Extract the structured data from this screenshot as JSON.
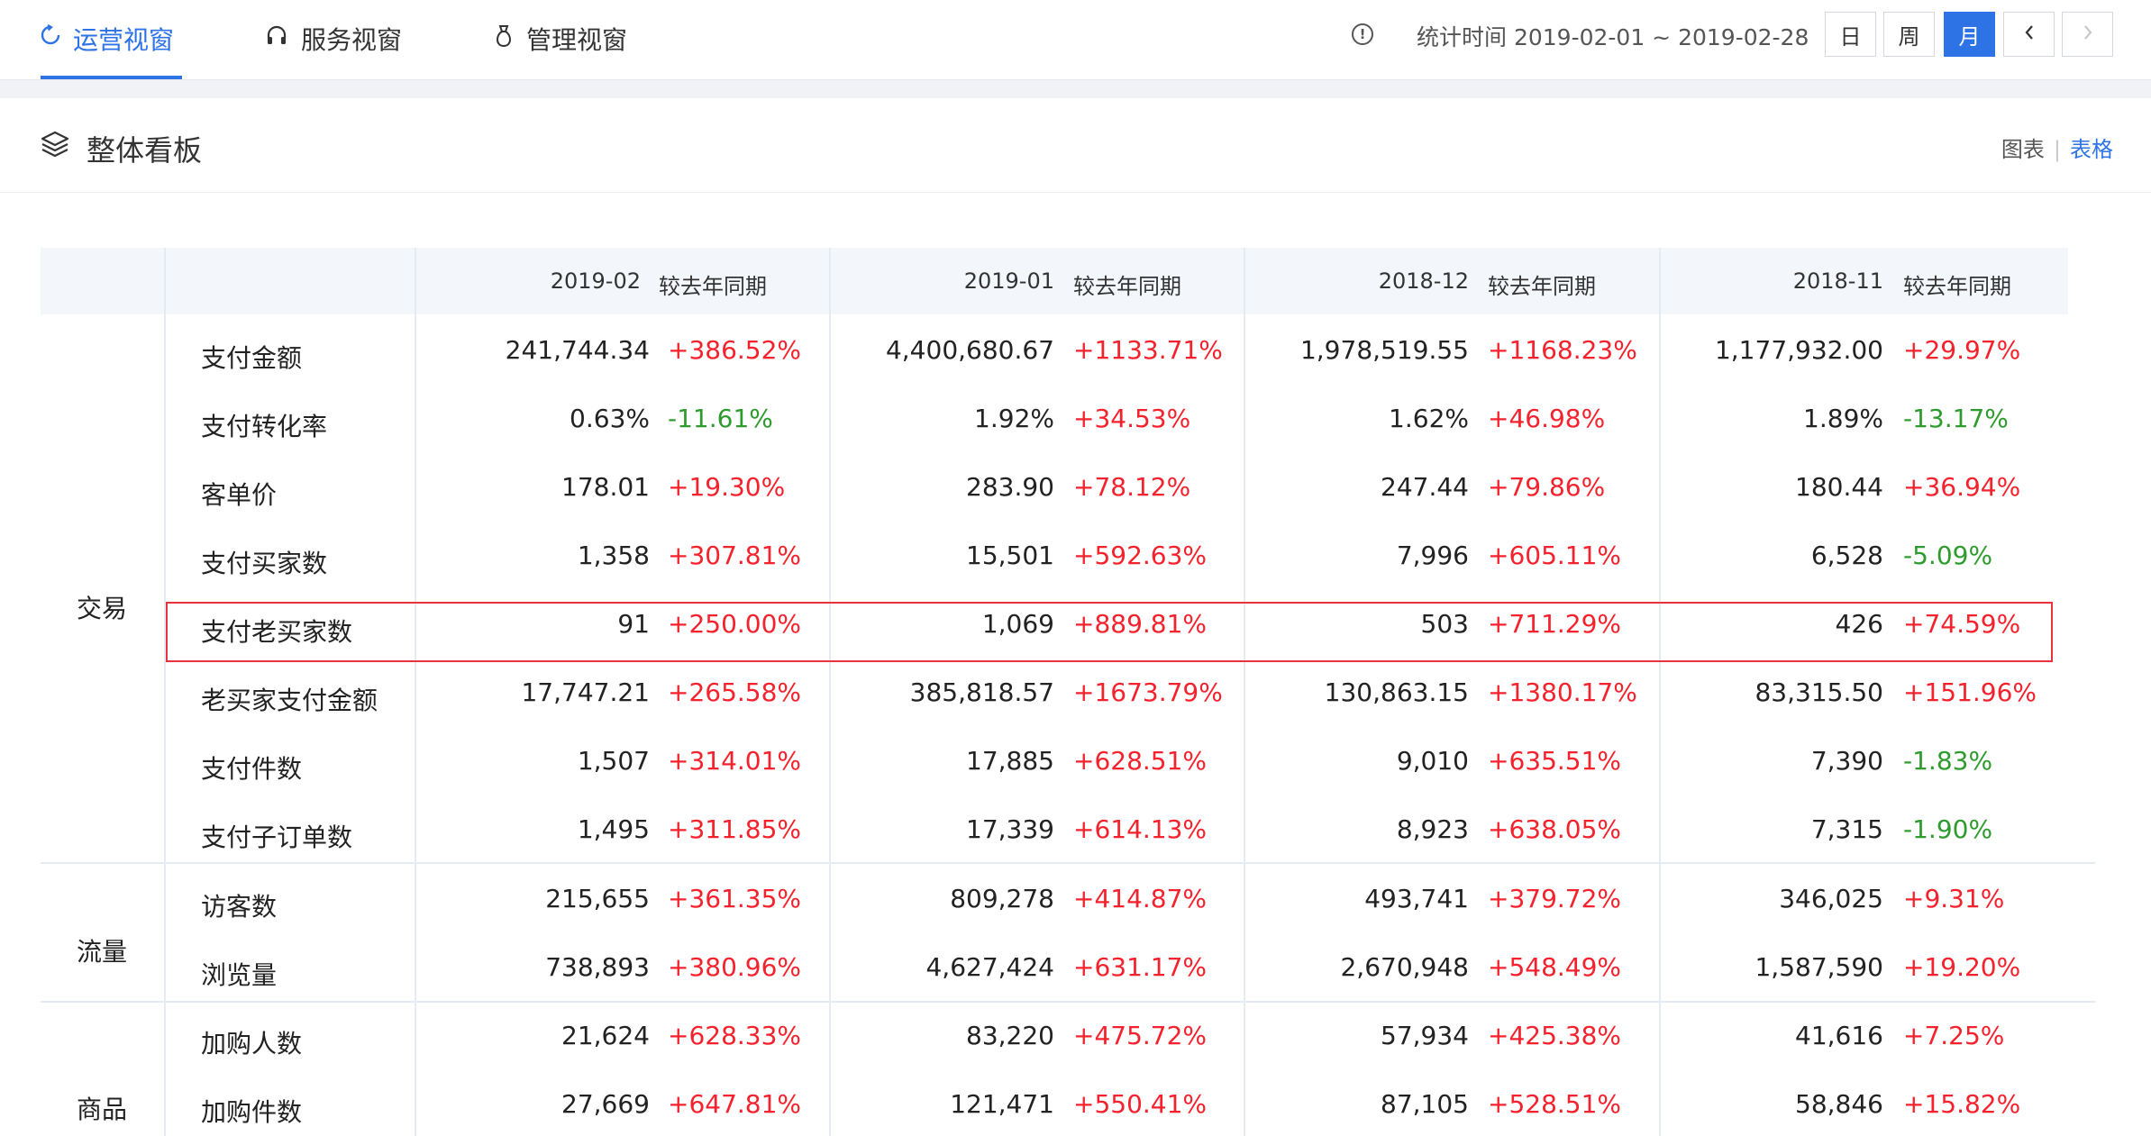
{
  "nav": {
    "tabs": [
      {
        "label": "运营视窗",
        "icon": "loop-icon",
        "active": true
      },
      {
        "label": "服务视窗",
        "icon": "headset-icon",
        "active": false
      },
      {
        "label": "管理视窗",
        "icon": "bag-icon",
        "active": false
      }
    ],
    "stat_time": "统计时间 2019-02-01 ~ 2019-02-28",
    "period_buttons": [
      "日",
      "周",
      "月"
    ],
    "active_period": "月",
    "prev_icon": "chevron-left-icon",
    "next_icon": "chevron-right-icon"
  },
  "panel": {
    "title": "整体看板",
    "icon": "layers-icon",
    "view_chart": "图表",
    "view_separator": "|",
    "view_table": "表格",
    "active_view": "表格"
  },
  "table": {
    "periods": [
      "2019-02",
      "2019-01",
      "2018-12",
      "2018-11"
    ],
    "compare_label": "较去年同期",
    "categories": [
      {
        "name": "交易",
        "rows": [
          {
            "label": "支付金额",
            "values": [
              "241,744.34",
              "4,400,680.67",
              "1,978,519.55",
              "1,177,932.00"
            ],
            "changes": [
              "+386.52%",
              "+1133.71%",
              "+1168.23%",
              "+29.97%"
            ]
          },
          {
            "label": "支付转化率",
            "values": [
              "0.63%",
              "1.92%",
              "1.62%",
              "1.89%"
            ],
            "changes": [
              "-11.61%",
              "+34.53%",
              "+46.98%",
              "-13.17%"
            ]
          },
          {
            "label": "客单价",
            "values": [
              "178.01",
              "283.90",
              "247.44",
              "180.44"
            ],
            "changes": [
              "+19.30%",
              "+78.12%",
              "+79.86%",
              "+36.94%"
            ]
          },
          {
            "label": "支付买家数",
            "values": [
              "1,358",
              "15,501",
              "7,996",
              "6,528"
            ],
            "changes": [
              "+307.81%",
              "+592.63%",
              "+605.11%",
              "-5.09%"
            ]
          },
          {
            "label": "支付老买家数",
            "values": [
              "91",
              "1,069",
              "503",
              "426"
            ],
            "changes": [
              "+250.00%",
              "+889.81%",
              "+711.29%",
              "+74.59%"
            ],
            "highlighted": true
          },
          {
            "label": "老买家支付金额",
            "values": [
              "17,747.21",
              "385,818.57",
              "130,863.15",
              "83,315.50"
            ],
            "changes": [
              "+265.58%",
              "+1673.79%",
              "+1380.17%",
              "+151.96%"
            ]
          },
          {
            "label": "支付件数",
            "values": [
              "1,507",
              "17,885",
              "9,010",
              "7,390"
            ],
            "changes": [
              "+314.01%",
              "+628.51%",
              "+635.51%",
              "-1.83%"
            ]
          },
          {
            "label": "支付子订单数",
            "values": [
              "1,495",
              "17,339",
              "8,923",
              "7,315"
            ],
            "changes": [
              "+311.85%",
              "+614.13%",
              "+638.05%",
              "-1.90%"
            ]
          }
        ]
      },
      {
        "name": "流量",
        "rows": [
          {
            "label": "访客数",
            "values": [
              "215,655",
              "809,278",
              "493,741",
              "346,025"
            ],
            "changes": [
              "+361.35%",
              "+414.87%",
              "+379.72%",
              "+9.31%"
            ]
          },
          {
            "label": "浏览量",
            "values": [
              "738,893",
              "4,627,424",
              "2,670,948",
              "1,587,590"
            ],
            "changes": [
              "+380.96%",
              "+631.17%",
              "+548.49%",
              "+19.20%"
            ]
          }
        ]
      },
      {
        "name": "商品",
        "rows": [
          {
            "label": "加购人数",
            "values": [
              "21,624",
              "83,220",
              "57,934",
              "41,616"
            ],
            "changes": [
              "+628.33%",
              "+475.72%",
              "+425.38%",
              "+7.25%"
            ]
          },
          {
            "label": "加购件数",
            "values": [
              "27,669",
              "121,471",
              "87,105",
              "58,846"
            ],
            "changes": [
              "+647.81%",
              "+550.41%",
              "+528.51%",
              "+15.82%"
            ]
          }
        ]
      }
    ]
  },
  "colors": {
    "accent": "#2e73e6",
    "positive_change": "#f5222d",
    "negative_change": "#2e9b2e",
    "highlight_border": "#e8323c"
  }
}
